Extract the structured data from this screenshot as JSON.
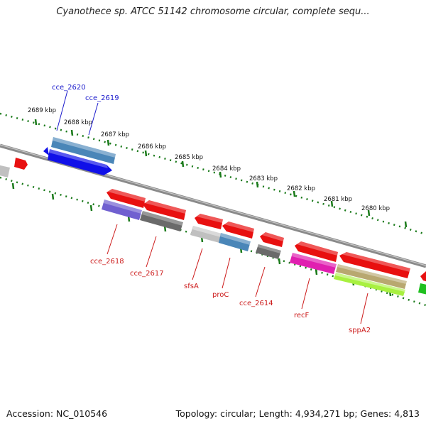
{
  "title": "Cyanothece sp. ATCC 51142 chromosome circular, complete sequ...",
  "footer": {
    "accession": "Accession: NC_010546",
    "topology": "Topology: circular; Length: 4,934,271 bp; Genes: 4,813"
  },
  "colors": {
    "backbone": "#8a8a8a",
    "ticks": "#1a7a1a",
    "forward_label": "#1a1acc",
    "reverse_label": "#cc1a1a",
    "red": "#e81010",
    "blue": "#1010e8",
    "steel": "#4a86b8",
    "violet": "#7060d0",
    "gray": "#6a6a6a",
    "lightgray": "#c0c0c0",
    "magenta": "#e020b0",
    "khaki": "#b8a870",
    "lime": "#a8f040",
    "green": "#20c020"
  },
  "kbp_labels": [
    "2689 kbp",
    "2688 kbp",
    "2687 kbp",
    "2686 kbp",
    "2685 kbp",
    "2684 kbp",
    "2683 kbp",
    "2682 kbp",
    "2681 kbp",
    "2680 kbp"
  ],
  "gene_labels": {
    "forward": [
      "cce_2620",
      "cce_2619"
    ],
    "reverse": [
      "cce_2618",
      "cce_2617",
      "sfsA",
      "proC",
      "cce_2614",
      "recF",
      "sppA2"
    ]
  }
}
